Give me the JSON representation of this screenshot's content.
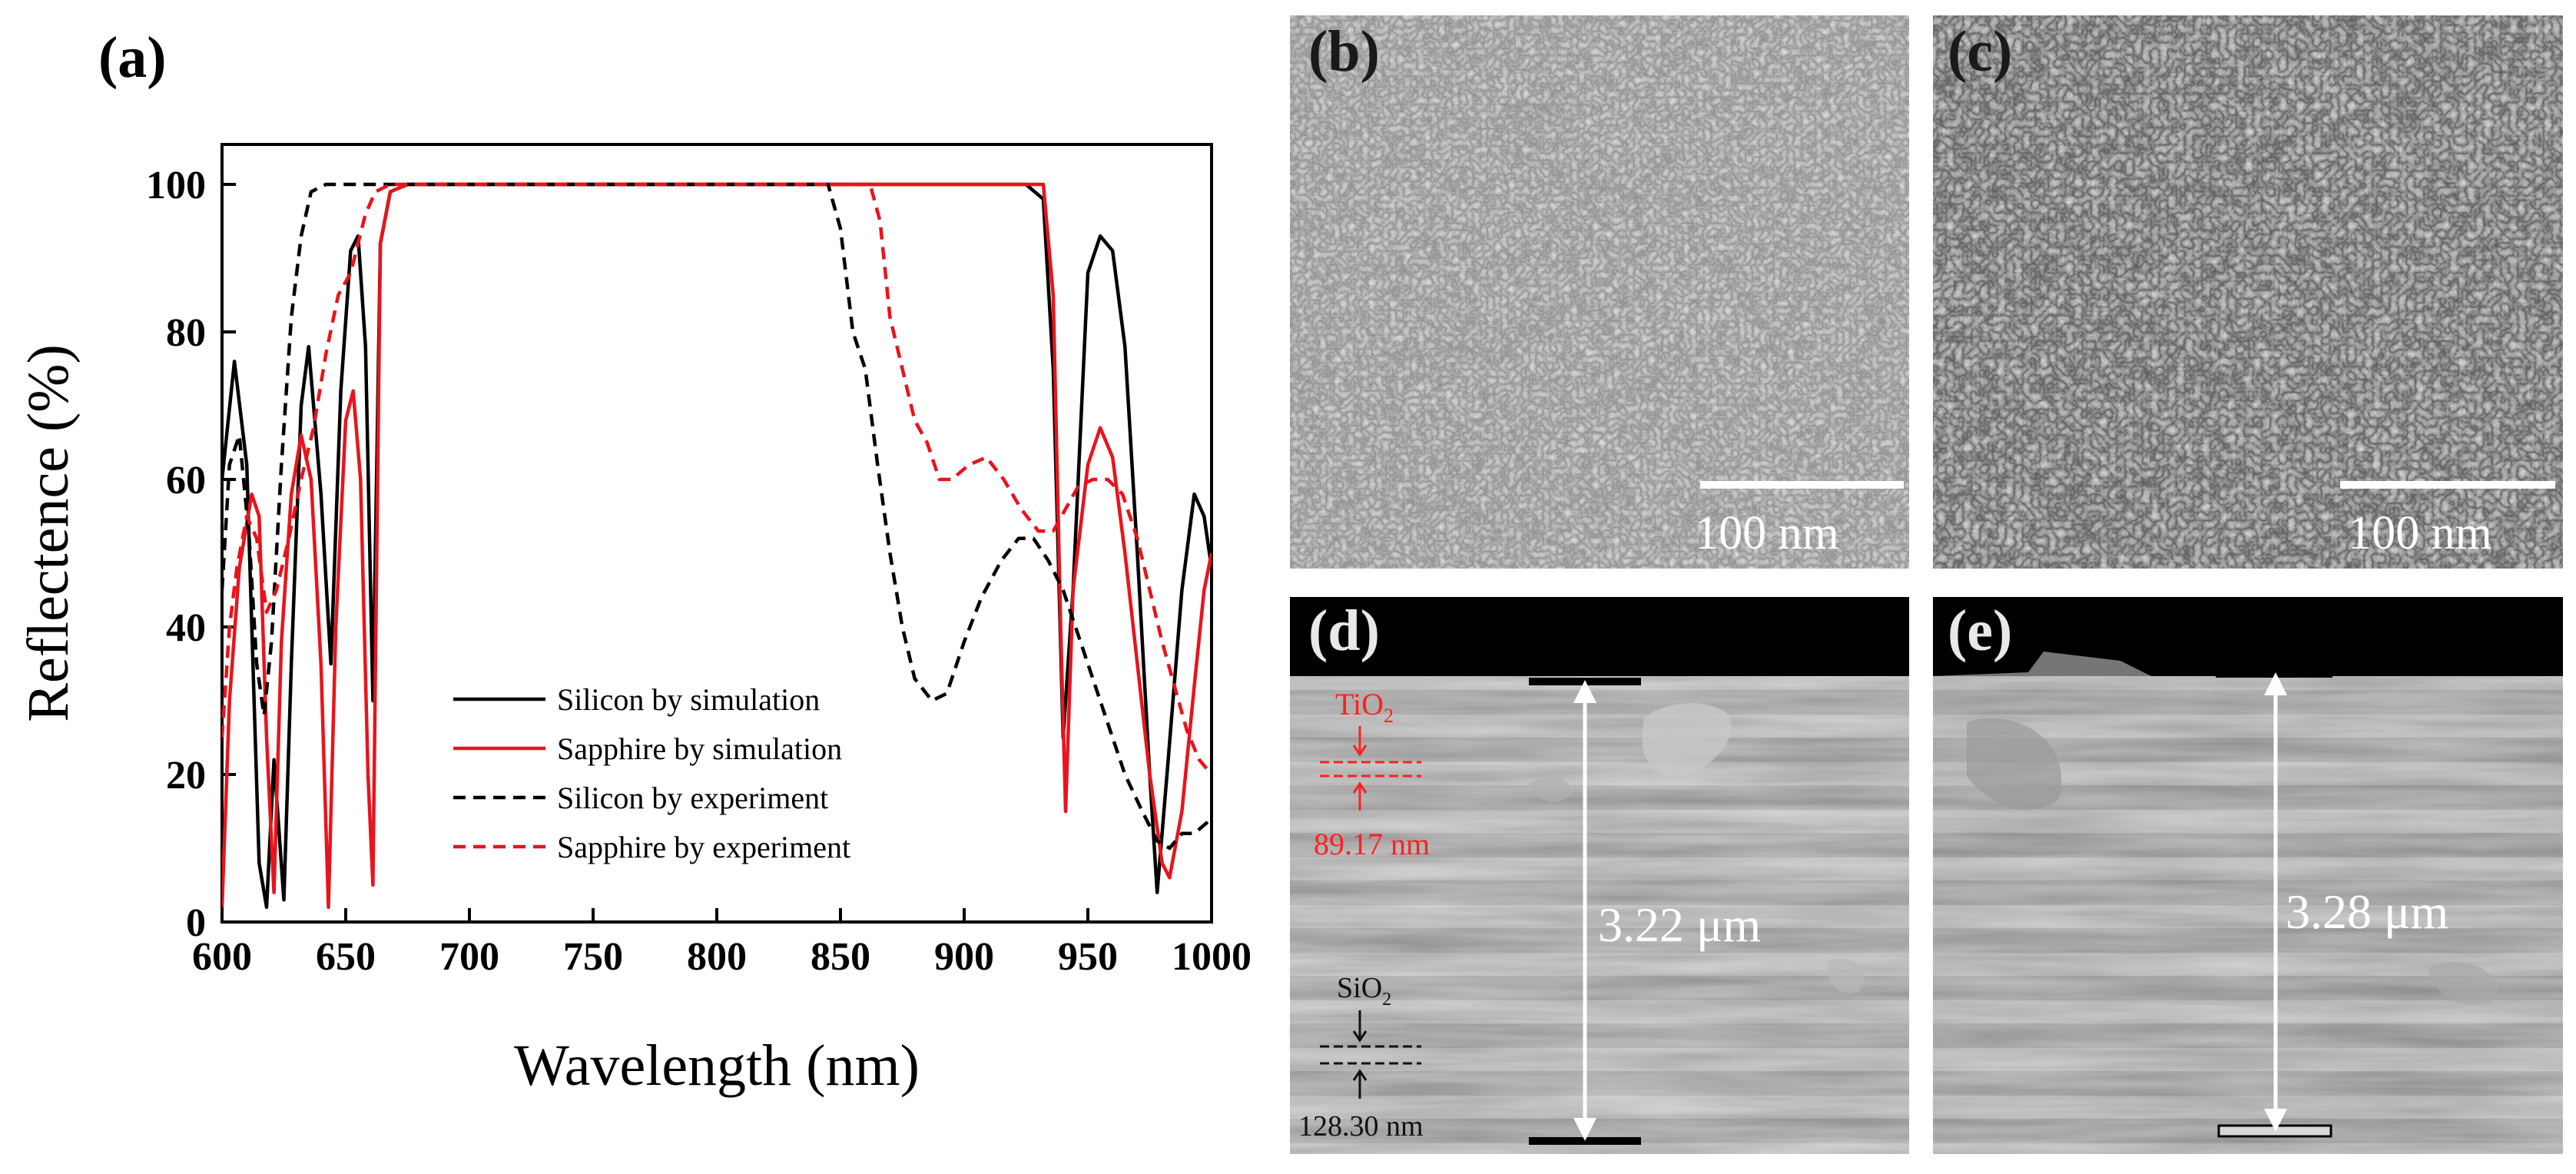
{
  "panel_labels": {
    "a": "(a)",
    "b": "(b)",
    "c": "(c)",
    "d": "(d)",
    "e": "(e)"
  },
  "chart_data": {
    "type": "line",
    "title": "",
    "xlabel": "Wavelength (nm)",
    "ylabel": "Reflectence (%)",
    "xlim": [
      600,
      1000
    ],
    "ylim": [
      0,
      105
    ],
    "xticks": [
      600,
      650,
      700,
      750,
      800,
      850,
      900,
      950,
      1000
    ],
    "yticks": [
      0,
      20,
      40,
      60,
      80,
      100
    ],
    "legend_position": "lower-center",
    "series": [
      {
        "name": "Silicon by simulation",
        "color": "#000000",
        "dash": "solid",
        "points": [
          [
            600,
            60
          ],
          [
            605,
            76
          ],
          [
            610,
            62
          ],
          [
            615,
            8
          ],
          [
            618,
            2
          ],
          [
            621,
            22
          ],
          [
            625,
            3
          ],
          [
            628,
            35
          ],
          [
            632,
            70
          ],
          [
            635,
            78
          ],
          [
            640,
            58
          ],
          [
            644,
            35
          ],
          [
            648,
            72
          ],
          [
            652,
            91
          ],
          [
            655,
            93
          ],
          [
            658,
            78
          ],
          [
            661,
            30
          ],
          [
            664,
            92
          ],
          [
            668,
            99
          ],
          [
            675,
            100
          ],
          [
            700,
            100
          ],
          [
            800,
            100
          ],
          [
            900,
            100
          ],
          [
            925,
            100
          ],
          [
            932,
            98
          ],
          [
            936,
            75
          ],
          [
            940,
            25
          ],
          [
            944,
            45
          ],
          [
            950,
            88
          ],
          [
            955,
            93
          ],
          [
            960,
            91
          ],
          [
            965,
            78
          ],
          [
            970,
            50
          ],
          [
            975,
            20
          ],
          [
            978,
            4
          ],
          [
            982,
            20
          ],
          [
            988,
            45
          ],
          [
            993,
            58
          ],
          [
            997,
            55
          ],
          [
            1000,
            48
          ]
        ]
      },
      {
        "name": "Sapphire by simulation",
        "color": "#e8141c",
        "dash": "solid",
        "points": [
          [
            600,
            2
          ],
          [
            603,
            30
          ],
          [
            607,
            48
          ],
          [
            612,
            58
          ],
          [
            615,
            55
          ],
          [
            618,
            25
          ],
          [
            621,
            4
          ],
          [
            624,
            38
          ],
          [
            628,
            58
          ],
          [
            632,
            66
          ],
          [
            636,
            60
          ],
          [
            640,
            35
          ],
          [
            643,
            2
          ],
          [
            646,
            40
          ],
          [
            650,
            68
          ],
          [
            653,
            72
          ],
          [
            656,
            60
          ],
          [
            659,
            20
          ],
          [
            661,
            5
          ],
          [
            664,
            92
          ],
          [
            668,
            99
          ],
          [
            675,
            100
          ],
          [
            700,
            100
          ],
          [
            900,
            100
          ],
          [
            932,
            100
          ],
          [
            936,
            85
          ],
          [
            939,
            40
          ],
          [
            941,
            15
          ],
          [
            944,
            45
          ],
          [
            950,
            62
          ],
          [
            955,
            67
          ],
          [
            960,
            63
          ],
          [
            965,
            50
          ],
          [
            970,
            35
          ],
          [
            975,
            20
          ],
          [
            980,
            8
          ],
          [
            983,
            6
          ],
          [
            988,
            15
          ],
          [
            993,
            32
          ],
          [
            997,
            45
          ],
          [
            1000,
            50
          ]
        ]
      },
      {
        "name": "Silicon by experiment",
        "color": "#000000",
        "dash": "dashed",
        "points": [
          [
            600,
            45
          ],
          [
            603,
            62
          ],
          [
            607,
            66
          ],
          [
            611,
            52
          ],
          [
            614,
            35
          ],
          [
            617,
            28
          ],
          [
            620,
            38
          ],
          [
            624,
            62
          ],
          [
            628,
            82
          ],
          [
            632,
            93
          ],
          [
            636,
            99
          ],
          [
            642,
            100
          ],
          [
            650,
            100
          ],
          [
            700,
            100
          ],
          [
            800,
            100
          ],
          [
            845,
            100
          ],
          [
            850,
            94
          ],
          [
            855,
            80
          ],
          [
            860,
            75
          ],
          [
            865,
            62
          ],
          [
            870,
            50
          ],
          [
            875,
            40
          ],
          [
            880,
            33
          ],
          [
            887,
            30
          ],
          [
            893,
            31
          ],
          [
            900,
            38
          ],
          [
            907,
            44
          ],
          [
            915,
            49
          ],
          [
            922,
            52
          ],
          [
            928,
            52
          ],
          [
            934,
            49
          ],
          [
            940,
            45
          ],
          [
            945,
            40
          ],
          [
            950,
            35
          ],
          [
            957,
            28
          ],
          [
            965,
            20
          ],
          [
            972,
            15
          ],
          [
            978,
            11
          ],
          [
            983,
            10
          ],
          [
            988,
            12
          ],
          [
            993,
            12
          ],
          [
            1000,
            14
          ]
        ]
      },
      {
        "name": "Sapphire by experiment",
        "color": "#e8141c",
        "dash": "dashed",
        "points": [
          [
            600,
            25
          ],
          [
            603,
            40
          ],
          [
            606,
            48
          ],
          [
            610,
            55
          ],
          [
            614,
            52
          ],
          [
            618,
            42
          ],
          [
            622,
            45
          ],
          [
            627,
            52
          ],
          [
            632,
            60
          ],
          [
            637,
            67
          ],
          [
            642,
            77
          ],
          [
            647,
            85
          ],
          [
            652,
            88
          ],
          [
            655,
            92
          ],
          [
            658,
            96
          ],
          [
            662,
            99
          ],
          [
            668,
            100
          ],
          [
            700,
            100
          ],
          [
            800,
            100
          ],
          [
            862,
            100
          ],
          [
            866,
            95
          ],
          [
            870,
            82
          ],
          [
            875,
            75
          ],
          [
            880,
            68
          ],
          [
            885,
            65
          ],
          [
            890,
            60
          ],
          [
            895,
            60
          ],
          [
            902,
            62
          ],
          [
            909,
            63
          ],
          [
            916,
            60
          ],
          [
            923,
            56
          ],
          [
            930,
            53
          ],
          [
            936,
            53
          ],
          [
            941,
            56
          ],
          [
            946,
            59
          ],
          [
            952,
            60
          ],
          [
            958,
            60
          ],
          [
            964,
            58
          ],
          [
            970,
            52
          ],
          [
            975,
            45
          ],
          [
            980,
            38
          ],
          [
            985,
            32
          ],
          [
            990,
            26
          ],
          [
            995,
            22
          ],
          [
            1000,
            20
          ]
        ]
      }
    ]
  },
  "sem_b": {
    "scalebar_label": "100 nm"
  },
  "sem_c": {
    "scalebar_label": "100 nm"
  },
  "sem_d": {
    "thickness": "3.22 μm",
    "layer1_label": "TiO",
    "layer1_sub": "2",
    "layer1_thickness": "89.17 nm",
    "layer2_label": "SiO",
    "layer2_sub": "2",
    "layer2_thickness": "128.30 nm",
    "accent_color": "#ff2020"
  },
  "sem_e": {
    "thickness": "3.28 μm"
  }
}
